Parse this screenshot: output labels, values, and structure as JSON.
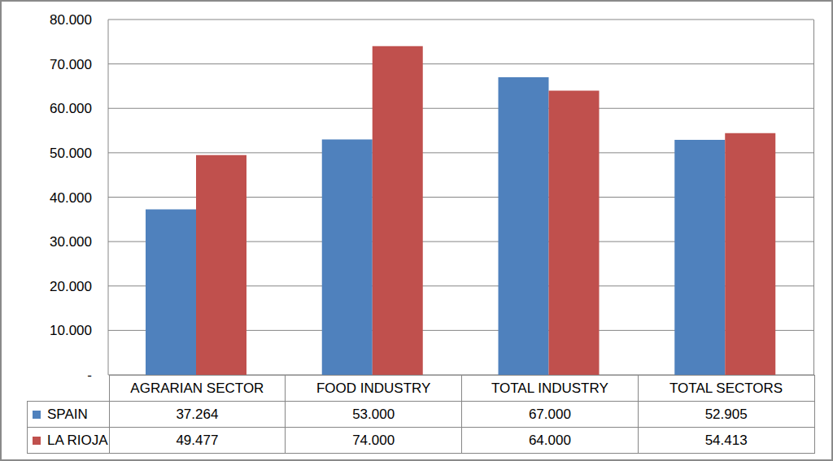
{
  "chart_data": {
    "type": "bar",
    "categories": [
      "AGRARIAN SECTOR",
      "FOOD INDUSTRY",
      "TOTAL INDUSTRY",
      "TOTAL SECTORS"
    ],
    "series": [
      {
        "name": "SPAIN",
        "color": "#4f81bd",
        "values": [
          37264,
          53000,
          67000,
          52905
        ],
        "value_labels": [
          "37.264",
          "53.000",
          "67.000",
          "52.905"
        ]
      },
      {
        "name": "LA RIOJA",
        "color": "#c0504d",
        "values": [
          49477,
          74000,
          64000,
          54413
        ],
        "value_labels": [
          "49.477",
          "74.000",
          "64.000",
          "54.413"
        ]
      }
    ],
    "ylim": [
      0,
      80000
    ],
    "yticks": [
      {
        "value": 0,
        "label": "-"
      },
      {
        "value": 10000,
        "label": "10.000"
      },
      {
        "value": 20000,
        "label": "20.000"
      },
      {
        "value": 30000,
        "label": "30.000"
      },
      {
        "value": 40000,
        "label": "40.000"
      },
      {
        "value": 50000,
        "label": "50.000"
      },
      {
        "value": 60000,
        "label": "60.000"
      },
      {
        "value": 70000,
        "label": "70.000"
      },
      {
        "value": 80000,
        "label": "80.000"
      }
    ],
    "grid": true
  }
}
